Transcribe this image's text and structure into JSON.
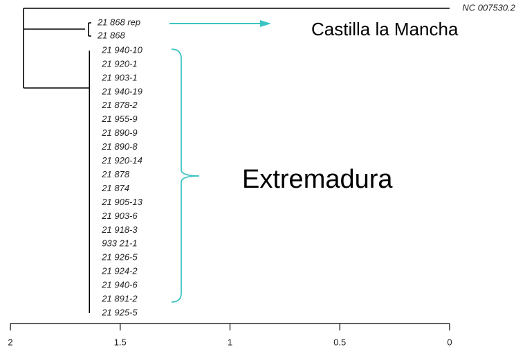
{
  "chart_data": {
    "type": "dendrogram",
    "xlim": [
      2,
      0
    ],
    "xticks": [
      2,
      1.5,
      1,
      0.5,
      0
    ],
    "root": 1.94,
    "outgroup": {
      "label": "NC 007530.2",
      "height": 0
    },
    "clades": [
      {
        "height": 1.66,
        "leaves": [
          "21 868 rep",
          "21 868"
        ],
        "annotation": "Castilla la Mancha"
      },
      {
        "height": 1.64,
        "leaves": [
          "21 940-10",
          "21 920-1",
          "21 903-1",
          "21 940-19",
          "21 878-2",
          "21 955-9",
          "21 890-9",
          "21 890-8",
          "21 920-14",
          "21 878",
          "21 874",
          "21 905-13",
          "21 903-6",
          "21 918-3",
          "933 21-1",
          "21 926-5",
          "21 924-2",
          "21 940-6",
          "21 891-2",
          "21 925-5"
        ],
        "annotation": "Extremadura"
      }
    ],
    "annotation_color": "#3cc4c4"
  }
}
